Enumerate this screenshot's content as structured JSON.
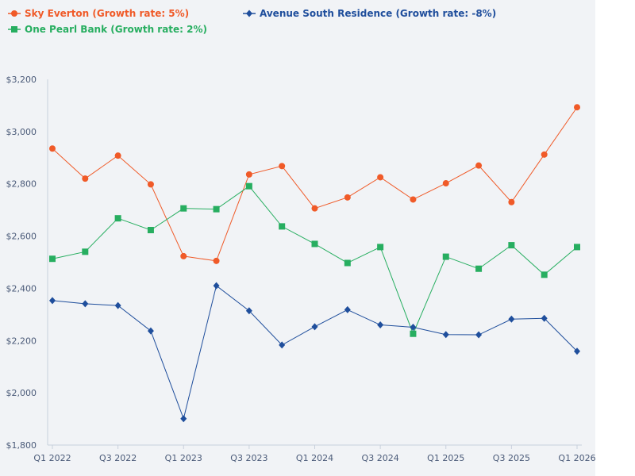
{
  "chart_data": {
    "type": "line",
    "title": "",
    "xlabel": "",
    "ylabel": "",
    "x": [
      "Q1 2022",
      "Q2 2022",
      "Q3 2022",
      "Q4 2022",
      "Q1 2023",
      "Q2 2023",
      "Q3 2023",
      "Q4 2023",
      "Q1 2024",
      "Q2 2024",
      "Q3 2024",
      "Q4 2024",
      "Q1 2025",
      "Q2 2025",
      "Q3 2025",
      "Q4 2025",
      "Q1 2026"
    ],
    "x_tick_labels": [
      "Q1 2022",
      "Q3 2022",
      "Q1 2023",
      "Q3 2023",
      "Q1 2024",
      "Q3 2024",
      "Q1 2025",
      "Q3 2025",
      "Q1 2026"
    ],
    "ylim": [
      1800,
      3200
    ],
    "y_ticks": [
      1800,
      2000,
      2200,
      2400,
      2600,
      2800,
      3000,
      3200
    ],
    "y_tick_labels": [
      "$1,800",
      "$2,000",
      "$2,200",
      "$2,400",
      "$2,600",
      "$2,800",
      "$3,000",
      "$3,200"
    ],
    "grid": false,
    "legend_position": "top-left",
    "series": [
      {
        "name": "Sky Everton (Growth rate: 5%)",
        "color": "#f05a28",
        "marker": "circle",
        "values": [
          2935,
          2820,
          2908,
          2798,
          2523,
          2505,
          2836,
          2868,
          2706,
          2748,
          2825,
          2740,
          2802,
          2870,
          2730,
          2912,
          3093
        ]
      },
      {
        "name": "One Pearl Bank (Growth rate: 2%)",
        "color": "#27ae60",
        "marker": "square",
        "values": [
          2513,
          2540,
          2668,
          2623,
          2706,
          2703,
          2791,
          2637,
          2570,
          2497,
          2558,
          2226,
          2521,
          2475,
          2565,
          2452,
          2558
        ]
      },
      {
        "name": "Avenue South Residence (Growth rate: -8%)",
        "color": "#1f4e9c",
        "marker": "diamond",
        "values": [
          2353,
          2341,
          2334,
          2237,
          1901,
          2410,
          2314,
          2183,
          2253,
          2318,
          2260,
          2251,
          2223,
          2222,
          2282,
          2285,
          2159
        ]
      }
    ]
  }
}
